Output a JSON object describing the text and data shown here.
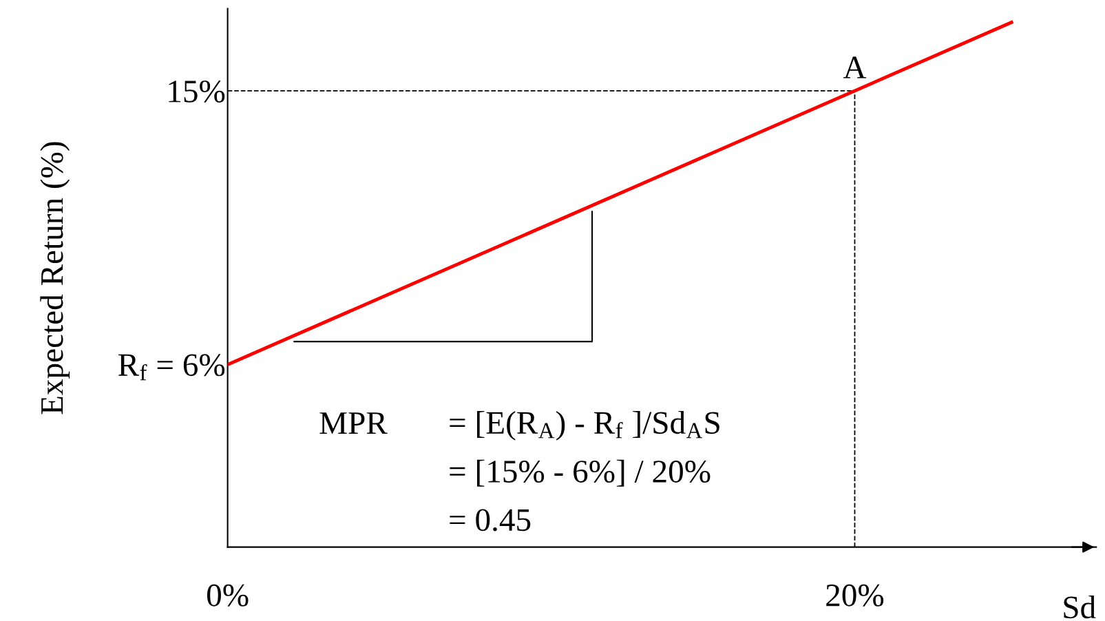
{
  "chart_data": {
    "type": "line",
    "xlabel": "Sd",
    "ylabel": "Expected Return (%)",
    "x": [
      0,
      25
    ],
    "series": [
      {
        "color": "#ff0000",
        "values": [
          6,
          17.25
        ]
      }
    ],
    "xlim": [
      0,
      27.7
    ],
    "ylim": [
      0,
      17.7
    ],
    "xticks": [
      {
        "value": 0,
        "label": "0%"
      },
      {
        "value": 20,
        "label": "20%"
      }
    ],
    "yticks": [
      {
        "value": 6,
        "label": "R$_{f}$ = 6%"
      },
      {
        "value": 15,
        "label": "15%"
      }
    ],
    "ref_lines": [
      {
        "axis": "y",
        "value": 15,
        "line_style": "dashed",
        "color": "#000000"
      },
      {
        "axis": "x",
        "value": 20,
        "line_style": "dashed",
        "color": "#000000"
      }
    ],
    "annotations": [
      {
        "text": "A",
        "x": 20,
        "y": 15
      },
      "MPR",
      "= [E(R$_{A}$) - R$_{f}$ ]/Sd$_{A}$S",
      "= [15% - 6%] / 20%",
      "= 0.45"
    ],
    "grid": false,
    "legend": false,
    "marker": "none",
    "line_style": "solid"
  }
}
